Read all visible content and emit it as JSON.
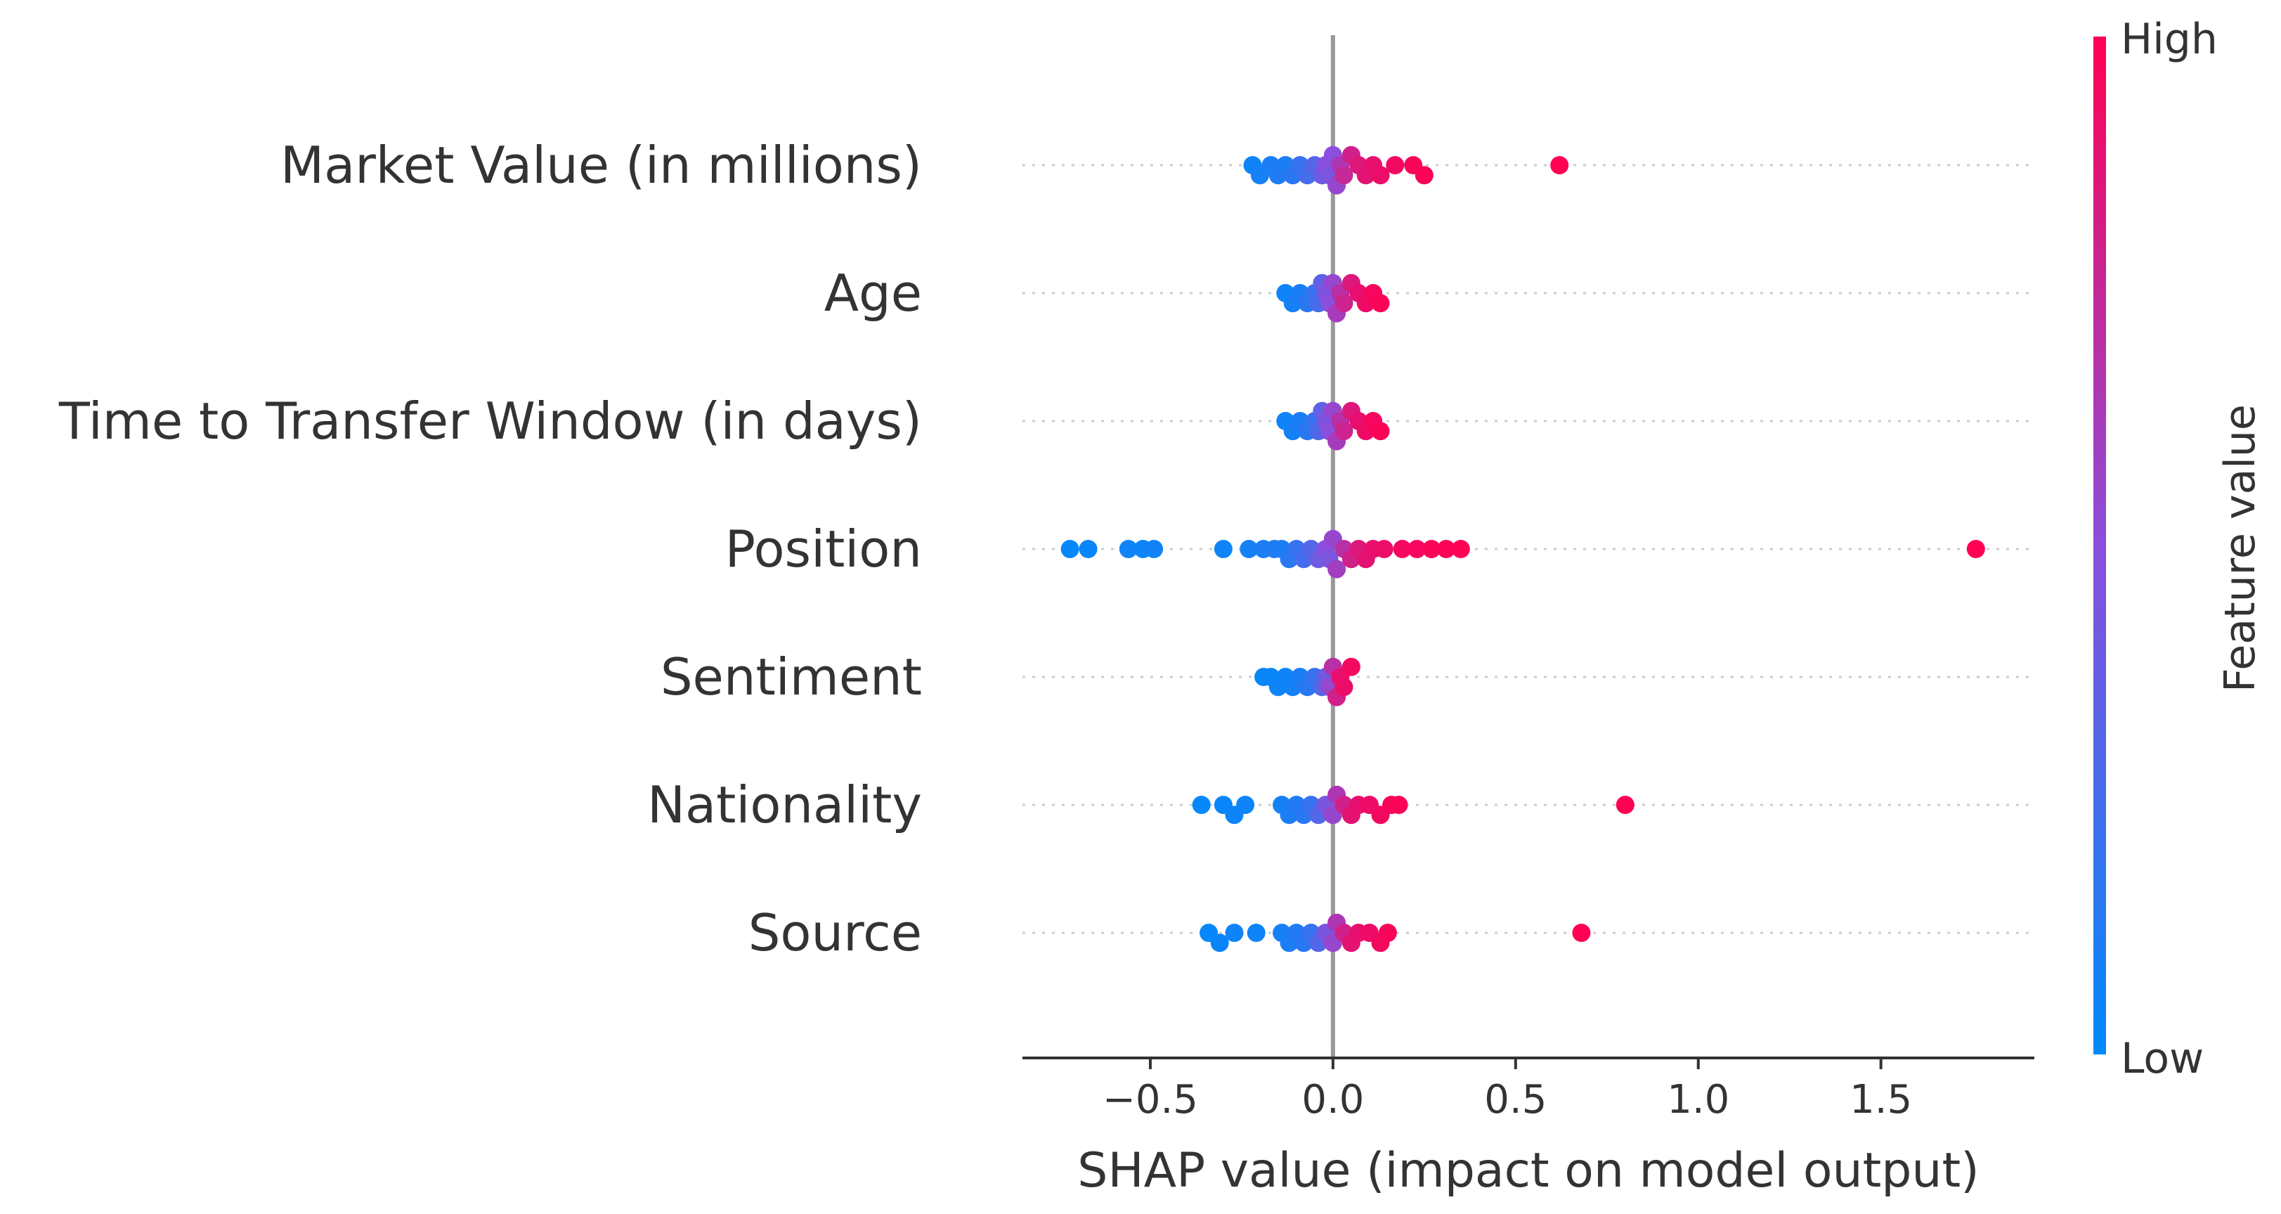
{
  "chart_data": {
    "type": "scatter",
    "subtype": "shap-beeswarm",
    "title": "",
    "xlabel": "SHAP value (impact on model output)",
    "ylabel": "",
    "xlim": [
      -0.85,
      1.92
    ],
    "xticks": [
      -0.5,
      0.0,
      0.5,
      1.0,
      1.5
    ],
    "xtick_labels": [
      "−0.5",
      "0.0",
      "0.5",
      "1.0",
      "1.5"
    ],
    "colorbar": {
      "title": "Feature value",
      "high_label": "High",
      "low_label": "Low",
      "low_color": "#008afb",
      "high_color": "#ff0052"
    },
    "features": [
      {
        "name": "Market Value (in millions)",
        "points": [
          {
            "x": -0.22,
            "v": 0.05
          },
          {
            "x": -0.2,
            "v": 0.08
          },
          {
            "x": -0.17,
            "v": 0.1
          },
          {
            "x": -0.15,
            "v": 0.12
          },
          {
            "x": -0.13,
            "v": 0.1
          },
          {
            "x": -0.11,
            "v": 0.15
          },
          {
            "x": -0.09,
            "v": 0.2
          },
          {
            "x": -0.07,
            "v": 0.25
          },
          {
            "x": -0.05,
            "v": 0.3
          },
          {
            "x": -0.03,
            "v": 0.4
          },
          {
            "x": -0.02,
            "v": 0.5
          },
          {
            "x": -0.01,
            "v": 0.45
          },
          {
            "x": 0.0,
            "v": 0.5
          },
          {
            "x": 0.01,
            "v": 0.55
          },
          {
            "x": 0.02,
            "v": 0.65
          },
          {
            "x": 0.03,
            "v": 0.75
          },
          {
            "x": 0.05,
            "v": 0.8
          },
          {
            "x": 0.07,
            "v": 0.85
          },
          {
            "x": 0.09,
            "v": 0.88
          },
          {
            "x": 0.11,
            "v": 0.9
          },
          {
            "x": 0.13,
            "v": 0.92
          },
          {
            "x": 0.17,
            "v": 0.95
          },
          {
            "x": 0.22,
            "v": 0.97
          },
          {
            "x": 0.25,
            "v": 0.98
          },
          {
            "x": 0.62,
            "v": 1.0
          }
        ]
      },
      {
        "name": "Age",
        "points": [
          {
            "x": -0.13,
            "v": 0.05
          },
          {
            "x": -0.11,
            "v": 0.08
          },
          {
            "x": -0.09,
            "v": 0.1
          },
          {
            "x": -0.07,
            "v": 0.15
          },
          {
            "x": -0.05,
            "v": 0.2
          },
          {
            "x": -0.04,
            "v": 0.25
          },
          {
            "x": -0.03,
            "v": 0.35
          },
          {
            "x": -0.02,
            "v": 0.45
          },
          {
            "x": -0.01,
            "v": 0.5
          },
          {
            "x": 0.0,
            "v": 0.55
          },
          {
            "x": 0.01,
            "v": 0.62
          },
          {
            "x": 0.02,
            "v": 0.7
          },
          {
            "x": 0.03,
            "v": 0.78
          },
          {
            "x": 0.05,
            "v": 0.85
          },
          {
            "x": 0.07,
            "v": 0.9
          },
          {
            "x": 0.09,
            "v": 0.93
          },
          {
            "x": 0.11,
            "v": 0.96
          },
          {
            "x": 0.13,
            "v": 0.98
          }
        ]
      },
      {
        "name": "Time to Transfer Window (in days)",
        "points": [
          {
            "x": -0.13,
            "v": 0.05
          },
          {
            "x": -0.11,
            "v": 0.08
          },
          {
            "x": -0.09,
            "v": 0.1
          },
          {
            "x": -0.07,
            "v": 0.15
          },
          {
            "x": -0.05,
            "v": 0.2
          },
          {
            "x": -0.04,
            "v": 0.28
          },
          {
            "x": -0.03,
            "v": 0.35
          },
          {
            "x": -0.02,
            "v": 0.45
          },
          {
            "x": -0.01,
            "v": 0.5
          },
          {
            "x": 0.0,
            "v": 0.55
          },
          {
            "x": 0.01,
            "v": 0.62
          },
          {
            "x": 0.02,
            "v": 0.7
          },
          {
            "x": 0.03,
            "v": 0.78
          },
          {
            "x": 0.05,
            "v": 0.85
          },
          {
            "x": 0.07,
            "v": 0.9
          },
          {
            "x": 0.09,
            "v": 0.93
          },
          {
            "x": 0.11,
            "v": 0.96
          },
          {
            "x": 0.13,
            "v": 0.98
          }
        ]
      },
      {
        "name": "Position",
        "points": [
          {
            "x": -0.72,
            "v": 0.02
          },
          {
            "x": -0.67,
            "v": 0.03
          },
          {
            "x": -0.56,
            "v": 0.05
          },
          {
            "x": -0.52,
            "v": 0.04
          },
          {
            "x": -0.49,
            "v": 0.06
          },
          {
            "x": -0.3,
            "v": 0.05
          },
          {
            "x": -0.23,
            "v": 0.08
          },
          {
            "x": -0.19,
            "v": 0.1
          },
          {
            "x": -0.16,
            "v": 0.12
          },
          {
            "x": -0.14,
            "v": 0.1
          },
          {
            "x": -0.12,
            "v": 0.15
          },
          {
            "x": -0.1,
            "v": 0.2
          },
          {
            "x": -0.08,
            "v": 0.25
          },
          {
            "x": -0.06,
            "v": 0.3
          },
          {
            "x": -0.04,
            "v": 0.4
          },
          {
            "x": -0.02,
            "v": 0.5
          },
          {
            "x": -0.01,
            "v": 0.45
          },
          {
            "x": 0.0,
            "v": 0.55
          },
          {
            "x": 0.01,
            "v": 0.6
          },
          {
            "x": 0.03,
            "v": 0.7
          },
          {
            "x": 0.05,
            "v": 0.8
          },
          {
            "x": 0.07,
            "v": 0.85
          },
          {
            "x": 0.09,
            "v": 0.88
          },
          {
            "x": 0.11,
            "v": 0.9
          },
          {
            "x": 0.14,
            "v": 0.92
          },
          {
            "x": 0.19,
            "v": 0.95
          },
          {
            "x": 0.23,
            "v": 0.96
          },
          {
            "x": 0.27,
            "v": 0.97
          },
          {
            "x": 0.31,
            "v": 0.98
          },
          {
            "x": 0.35,
            "v": 0.99
          },
          {
            "x": 1.76,
            "v": 1.0
          }
        ]
      },
      {
        "name": "Sentiment",
        "points": [
          {
            "x": -0.19,
            "v": 0.02
          },
          {
            "x": -0.17,
            "v": 0.03
          },
          {
            "x": -0.15,
            "v": 0.05
          },
          {
            "x": -0.13,
            "v": 0.05
          },
          {
            "x": -0.11,
            "v": 0.07
          },
          {
            "x": -0.09,
            "v": 0.1
          },
          {
            "x": -0.07,
            "v": 0.15
          },
          {
            "x": -0.05,
            "v": 0.2
          },
          {
            "x": -0.03,
            "v": 0.3
          },
          {
            "x": -0.02,
            "v": 0.4
          },
          {
            "x": -0.01,
            "v": 0.55
          },
          {
            "x": 0.0,
            "v": 0.7
          },
          {
            "x": 0.01,
            "v": 0.8
          },
          {
            "x": 0.02,
            "v": 0.9
          },
          {
            "x": 0.03,
            "v": 0.92
          },
          {
            "x": 0.05,
            "v": 0.95
          }
        ]
      },
      {
        "name": "Nationality",
        "points": [
          {
            "x": -0.36,
            "v": 0.02
          },
          {
            "x": -0.3,
            "v": 0.03
          },
          {
            "x": -0.27,
            "v": 0.05
          },
          {
            "x": -0.24,
            "v": 0.05
          },
          {
            "x": -0.14,
            "v": 0.08
          },
          {
            "x": -0.12,
            "v": 0.1
          },
          {
            "x": -0.1,
            "v": 0.12
          },
          {
            "x": -0.08,
            "v": 0.15
          },
          {
            "x": -0.06,
            "v": 0.2
          },
          {
            "x": -0.04,
            "v": 0.3
          },
          {
            "x": -0.02,
            "v": 0.45
          },
          {
            "x": 0.0,
            "v": 0.55
          },
          {
            "x": 0.01,
            "v": 0.65
          },
          {
            "x": 0.03,
            "v": 0.8
          },
          {
            "x": 0.05,
            "v": 0.88
          },
          {
            "x": 0.07,
            "v": 0.9
          },
          {
            "x": 0.1,
            "v": 0.93
          },
          {
            "x": 0.13,
            "v": 0.95
          },
          {
            "x": 0.16,
            "v": 0.97
          },
          {
            "x": 0.18,
            "v": 0.98
          },
          {
            "x": 0.8,
            "v": 1.0
          }
        ]
      },
      {
        "name": "Source",
        "points": [
          {
            "x": -0.34,
            "v": 0.02
          },
          {
            "x": -0.31,
            "v": 0.03
          },
          {
            "x": -0.27,
            "v": 0.05
          },
          {
            "x": -0.21,
            "v": 0.05
          },
          {
            "x": -0.14,
            "v": 0.08
          },
          {
            "x": -0.12,
            "v": 0.1
          },
          {
            "x": -0.1,
            "v": 0.12
          },
          {
            "x": -0.08,
            "v": 0.15
          },
          {
            "x": -0.06,
            "v": 0.2
          },
          {
            "x": -0.04,
            "v": 0.3
          },
          {
            "x": -0.02,
            "v": 0.45
          },
          {
            "x": 0.0,
            "v": 0.55
          },
          {
            "x": 0.01,
            "v": 0.65
          },
          {
            "x": 0.03,
            "v": 0.8
          },
          {
            "x": 0.05,
            "v": 0.88
          },
          {
            "x": 0.07,
            "v": 0.9
          },
          {
            "x": 0.1,
            "v": 0.93
          },
          {
            "x": 0.13,
            "v": 0.95
          },
          {
            "x": 0.15,
            "v": 0.97
          },
          {
            "x": 0.68,
            "v": 1.0
          }
        ]
      }
    ]
  }
}
